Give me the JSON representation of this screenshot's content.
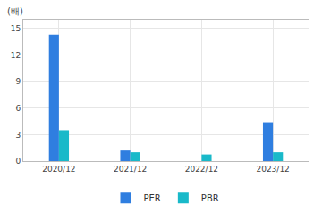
{
  "chart_data": {
    "type": "bar",
    "ylabel": "(배)",
    "categories": [
      "2020/12",
      "2021/12",
      "2022/12",
      "2023/12"
    ],
    "series": [
      {
        "name": "PER",
        "color": "#2f7ee0",
        "values": [
          14.3,
          1.2,
          null,
          4.4
        ]
      },
      {
        "name": "PBR",
        "color": "#19b9c9",
        "values": [
          3.5,
          1.0,
          0.75,
          1.0
        ]
      }
    ],
    "ylim": [
      0,
      16
    ],
    "yticks": [
      0,
      3,
      6,
      9,
      12,
      15
    ],
    "grid": true,
    "legend": "bottom"
  }
}
